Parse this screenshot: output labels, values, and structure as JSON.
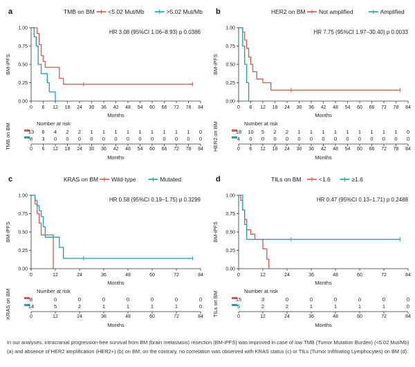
{
  "caption": "In our analyses, intracranial progression-free survival from BM (brain metastasis) resection (BM-iPFS) was improved in case of low TMB (Tumor Mutation Burden) (<5.02 Mut/Mb) (a) and absence of HER2 amplification (HER2+) (b) on BM; on the contrary, no correlation was observed with KRAS status (c) or TILs (Tumor Infiltrating Lymphocytes) on BM (d).",
  "colors": {
    "red": "#d9534f",
    "teal": "#1aa3a3"
  },
  "chart_data": [
    {
      "panel": "a",
      "type": "line",
      "legend_title": "TMB on BM",
      "legend_placement": "top",
      "hr_text": "HR 3.08 (95%CI 1.06–8.93) p 0.0386",
      "xlabel": "Months",
      "ylabel": "BM-iPFS",
      "xticks": [
        "0",
        "6",
        "12",
        "18",
        "24",
        "30",
        "36",
        "42",
        "48",
        "54",
        "60",
        "66",
        "72",
        "78",
        "84"
      ],
      "yticks": [
        "0.00",
        "0.25",
        "0.50",
        "0.75",
        "1.00"
      ],
      "xlim": [
        0,
        84
      ],
      "ylim": [
        0,
        1
      ],
      "risk_title": "Number at risk",
      "risk_ylabel": "TMB on BM",
      "risk_xticks": [
        "0",
        "6",
        "12",
        "18",
        "24",
        "30",
        "36",
        "42",
        "48",
        "54",
        "60",
        "66",
        "72",
        "78",
        "84"
      ],
      "series": [
        {
          "name": "<5.02 Mut/Mb",
          "color": "red",
          "steps": [
            [
              0,
              1
            ],
            [
              3,
              0.92
            ],
            [
              4,
              0.77
            ],
            [
              5,
              0.62
            ],
            [
              6,
              0.54
            ],
            [
              7,
              0.46
            ],
            [
              14,
              0.31
            ],
            [
              16,
              0.23
            ],
            [
              80,
              0.23
            ]
          ],
          "censor": [
            [
              26,
              0.23
            ],
            [
              80,
              0.23
            ]
          ],
          "risk": [
            "13",
            "6",
            "4",
            "2",
            "2",
            "1",
            "1",
            "1",
            "1",
            "1",
            "1",
            "1",
            "1",
            "1",
            "0"
          ]
        },
        {
          "name": ">5.02 Mut/Mb",
          "color": "teal",
          "steps": [
            [
              0,
              1
            ],
            [
              1.5,
              0.875
            ],
            [
              2.5,
              0.75
            ],
            [
              3.5,
              0.5
            ],
            [
              5,
              0.375
            ],
            [
              8,
              0.25
            ],
            [
              9,
              0.125
            ],
            [
              12,
              0
            ],
            [
              12.5,
              0
            ]
          ],
          "censor": [],
          "risk": [
            "8",
            "3",
            "0",
            "0",
            "0",
            "0",
            "0",
            "0",
            "0",
            "0",
            "0",
            "0",
            "0",
            "0",
            "0"
          ]
        }
      ]
    },
    {
      "panel": "b",
      "type": "line",
      "legend_title": "HER2 on BM",
      "legend_placement": "top",
      "hr_text": "HR 7.75 (95%CI 1.97–30.40) p 0.0033",
      "xlabel": "Months",
      "ylabel": "BM-iPFS",
      "xticks": [
        "0",
        "6",
        "12",
        "18",
        "24",
        "30",
        "36",
        "42",
        "48",
        "54",
        "60",
        "66",
        "72",
        "78",
        "84"
      ],
      "yticks": [
        "0.00",
        "0.25",
        "0.50",
        "0.75",
        "1.00"
      ],
      "xlim": [
        0,
        84
      ],
      "ylim": [
        0,
        1
      ],
      "risk_title": "Number at risk",
      "risk_ylabel": "HER2 on BM",
      "risk_xticks": [
        "0",
        "6",
        "12",
        "18",
        "24",
        "30",
        "36",
        "42",
        "48",
        "54",
        "60",
        "66",
        "72",
        "78",
        "84"
      ],
      "series": [
        {
          "name": "Not amplified",
          "color": "red",
          "steps": [
            [
              0,
              1
            ],
            [
              2,
              0.94
            ],
            [
              3,
              0.83
            ],
            [
              4,
              0.72
            ],
            [
              5,
              0.6
            ],
            [
              6,
              0.5
            ],
            [
              7,
              0.4
            ],
            [
              9,
              0.3
            ],
            [
              12,
              0.25
            ],
            [
              16,
              0.15
            ],
            [
              80,
              0.15
            ]
          ],
          "censor": [
            [
              26,
              0.15
            ],
            [
              80,
              0.15
            ]
          ],
          "risk": [
            "18",
            "10",
            "5",
            "2",
            "2",
            "1",
            "1",
            "1",
            "1",
            "1",
            "1",
            "1",
            "1",
            "1",
            "0"
          ]
        },
        {
          "name": "Amplified",
          "color": "teal",
          "steps": [
            [
              0,
              1
            ],
            [
              2,
              0.75
            ],
            [
              3,
              0.5
            ],
            [
              4,
              0.25
            ],
            [
              5,
              0
            ],
            [
              5.5,
              0
            ]
          ],
          "censor": [],
          "risk": [
            "4",
            "0",
            "0",
            "0",
            "0",
            "0",
            "0",
            "0",
            "0",
            "0",
            "0",
            "0",
            "0",
            "0",
            "0"
          ]
        }
      ]
    },
    {
      "panel": "c",
      "type": "line",
      "legend_title": "KRAS on BM",
      "legend_placement": "top",
      "hr_text": "HR 0.58 (95%CI 0.19–1.75) p 0.3299",
      "xlabel": "Months",
      "ylabel": "BM-iPFS",
      "xticks": [
        "0",
        "12",
        "24",
        "36",
        "48",
        "60",
        "72",
        "84"
      ],
      "yticks": [
        "0.00",
        "0.25",
        "0.50",
        "0.75",
        "1.00"
      ],
      "xlim": [
        0,
        84
      ],
      "ylim": [
        0,
        1
      ],
      "risk_title": "Number at risk",
      "risk_ylabel": "KRAS on BM",
      "risk_xticks": [
        "0",
        "12",
        "24",
        "36",
        "48",
        "60",
        "72",
        "84"
      ],
      "series": [
        {
          "name": "Wild-type",
          "color": "red",
          "steps": [
            [
              0,
              1
            ],
            [
              2,
              0.88
            ],
            [
              3,
              0.75
            ],
            [
              4,
              0.62
            ],
            [
              5,
              0.46
            ],
            [
              11,
              0
            ],
            [
              11.5,
              0
            ]
          ],
          "censor": [],
          "risk": [
            "8",
            "0",
            "0",
            "0",
            "0",
            "0",
            "0",
            "0"
          ]
        },
        {
          "name": "Mutated",
          "color": "teal",
          "steps": [
            [
              0,
              1
            ],
            [
              2,
              0.93
            ],
            [
              3,
              0.86
            ],
            [
              4,
              0.79
            ],
            [
              5,
              0.71
            ],
            [
              6,
              0.57
            ],
            [
              7,
              0.43
            ],
            [
              14,
              0.29
            ],
            [
              16,
              0.14
            ],
            [
              80,
              0.14
            ]
          ],
          "censor": [
            [
              26,
              0.14
            ],
            [
              80,
              0.14
            ]
          ],
          "risk": [
            "14",
            "5",
            "2",
            "1",
            "1",
            "1",
            "1",
            "0"
          ]
        }
      ]
    },
    {
      "panel": "d",
      "type": "line",
      "legend_title": "TILs on BM",
      "legend_placement": "top",
      "hr_text": "HR 0.47 (95%CI 0.13–1.71) p 0.2488",
      "xlabel": "Months",
      "ylabel": "BM-iPFS",
      "xticks": [
        "0",
        "12",
        "24",
        "36",
        "48",
        "60",
        "72",
        "84"
      ],
      "yticks": [
        "0.00",
        "0.25",
        "0.50",
        "0.75",
        "1.00"
      ],
      "xlim": [
        0,
        84
      ],
      "ylim": [
        0,
        1
      ],
      "risk_title": "Number at risk",
      "risk_ylabel": "TILs on BM",
      "risk_xticks": [
        "0",
        "12",
        "24",
        "36",
        "48",
        "60",
        "72",
        "84"
      ],
      "series": [
        {
          "name": "<1.6",
          "color": "red",
          "steps": [
            [
              0,
              1
            ],
            [
              1,
              0.93
            ],
            [
              2,
              0.8
            ],
            [
              3,
              0.67
            ],
            [
              4,
              0.53
            ],
            [
              6,
              0.47
            ],
            [
              8,
              0.4
            ],
            [
              12,
              0.27
            ],
            [
              14,
              0.13
            ],
            [
              15,
              0
            ],
            [
              15.5,
              0
            ]
          ],
          "censor": [],
          "risk": [
            "15",
            "3",
            "0",
            "0",
            "0",
            "0",
            "0",
            "0"
          ]
        },
        {
          "name": "≥1.6",
          "color": "teal",
          "steps": [
            [
              0,
              1
            ],
            [
              2,
              0.8
            ],
            [
              3,
              0.6
            ],
            [
              4,
              0.4
            ],
            [
              80,
              0.4
            ]
          ],
          "censor": [
            [
              26,
              0.4
            ],
            [
              80,
              0.4
            ]
          ],
          "risk": [
            "5",
            "2",
            "2",
            "1",
            "1",
            "1",
            "1",
            "0"
          ]
        }
      ]
    }
  ]
}
